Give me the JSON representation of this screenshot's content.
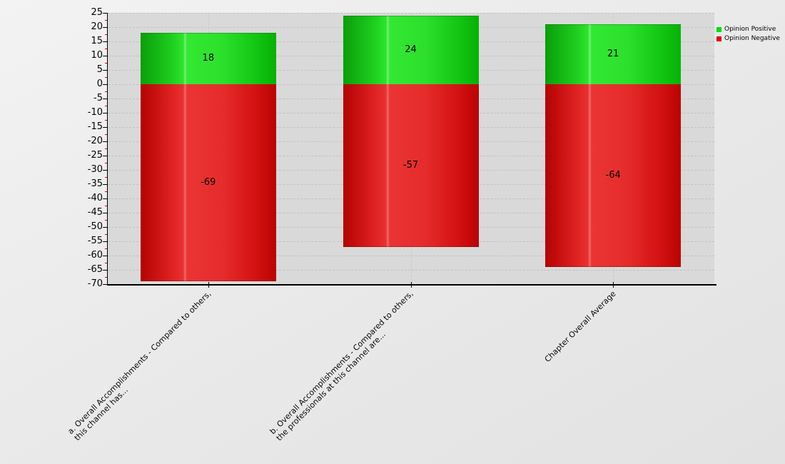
{
  "chart_data": {
    "type": "bar",
    "stacked": true,
    "title": "",
    "categories": [
      "a. Overall Accomplishments - Compared to others,\nthis channel has...",
      "b. Overall Accomplishments - Compared to others,\nthe professionals at this channel are...",
      "Chapter Overall Average"
    ],
    "series": [
      {
        "name": "Opinion Positive",
        "color": "#00dd00",
        "values": [
          18,
          24,
          21
        ]
      },
      {
        "name": "Opinion Negative",
        "color": "#e60000",
        "values": [
          -69,
          -57,
          -64
        ]
      }
    ],
    "value_labels": {
      "positive": [
        "18",
        "24",
        "21"
      ],
      "negative": [
        "-69",
        "-57",
        "-64"
      ]
    },
    "ylim": [
      -70,
      25
    ],
    "yticks": [
      25,
      20,
      15,
      10,
      5,
      0,
      -5,
      -10,
      -15,
      -20,
      -25,
      -30,
      -35,
      -40,
      -45,
      -50,
      -55,
      -60,
      -65,
      -70
    ],
    "yminor_step": 2.5,
    "grid": true,
    "legend_position": "top-right",
    "colors": {
      "plot_background": "#d9d9d9",
      "gridline": "#c2c2c2",
      "axis": "#000000",
      "minor_tick": "#e80000",
      "text": "#000000"
    }
  }
}
